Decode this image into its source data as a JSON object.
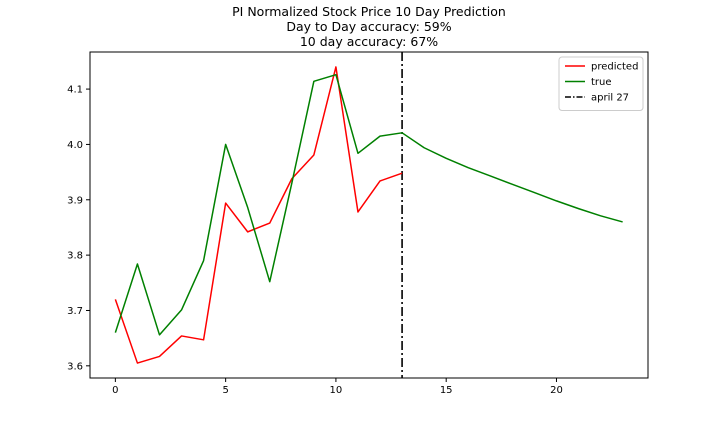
{
  "chart_data": {
    "type": "line",
    "title_lines": [
      "PI Normalized Stock Price 10 Day Prediction",
      "Day to Day accuracy: 59%",
      "10 day accuracy: 67%"
    ],
    "xlabel": "",
    "ylabel": "",
    "xlim": [
      -1.15,
      24.15
    ],
    "ylim": [
      3.578,
      4.167
    ],
    "xticks": [
      0,
      5,
      10,
      15,
      20
    ],
    "xtick_labels": [
      "0",
      "5",
      "10",
      "15",
      "20"
    ],
    "yticks": [
      3.6,
      3.7,
      3.8,
      3.9,
      4.0,
      4.1
    ],
    "ytick_labels": [
      "3.6",
      "3.7",
      "3.8",
      "3.9",
      "4.0",
      "4.1"
    ],
    "grid": false,
    "legend_position": "top-right",
    "series": [
      {
        "name": "predicted",
        "color": "#ff0000",
        "style": "solid",
        "x": [
          0,
          1,
          2,
          3,
          4,
          5,
          6,
          7,
          8,
          9,
          10,
          11,
          12,
          13
        ],
        "values": [
          3.72,
          3.605,
          3.617,
          3.654,
          3.647,
          3.894,
          3.842,
          3.858,
          3.938,
          3.981,
          4.14,
          3.878,
          3.934,
          3.948
        ]
      },
      {
        "name": "true",
        "color": "#008000",
        "style": "solid",
        "x": [
          0,
          1,
          2,
          3,
          4,
          5,
          6,
          7,
          8,
          9,
          10,
          11,
          12,
          13,
          14,
          15,
          16,
          17,
          18,
          19,
          20,
          21,
          22,
          23
        ],
        "values": [
          3.66,
          3.784,
          3.656,
          3.701,
          3.79,
          4.0,
          3.886,
          3.752,
          3.93,
          4.114,
          4.126,
          3.984,
          4.015,
          4.021,
          3.994,
          3.975,
          3.958,
          3.943,
          3.928,
          3.913,
          3.898,
          3.884,
          3.871,
          3.86
        ]
      }
    ],
    "vlines": [
      {
        "name": "april 27",
        "x": 13,
        "color": "#000000",
        "style": "dashdot"
      }
    ]
  }
}
